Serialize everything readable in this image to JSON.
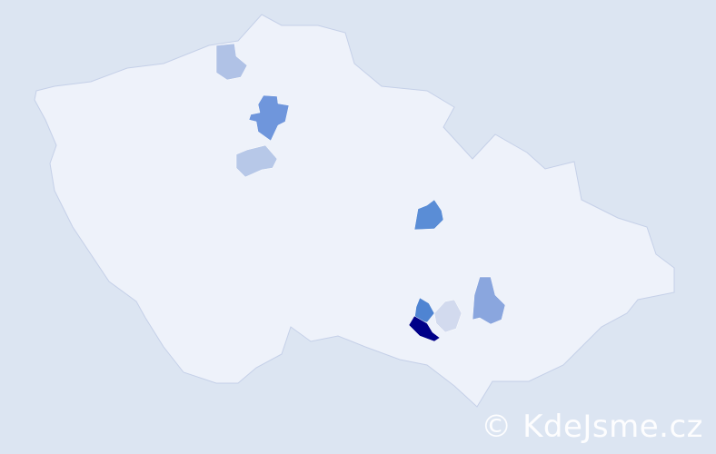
{
  "map": {
    "country_fill": "#eef2fa",
    "border_color": "#c5d0e8",
    "background": "#dce5f2",
    "highlighted_districts": [
      {
        "shade": "#b0c2e6"
      },
      {
        "shade": "#6f96dc"
      },
      {
        "shade": "#b7c8e8"
      },
      {
        "shade": "#5a8dd6"
      },
      {
        "shade": "#8aa6de"
      },
      {
        "shade": "#d2daee"
      },
      {
        "shade": "#4f84d2"
      },
      {
        "shade": "#000088"
      }
    ]
  },
  "watermark": {
    "text": "© KdeJsme.cz"
  }
}
